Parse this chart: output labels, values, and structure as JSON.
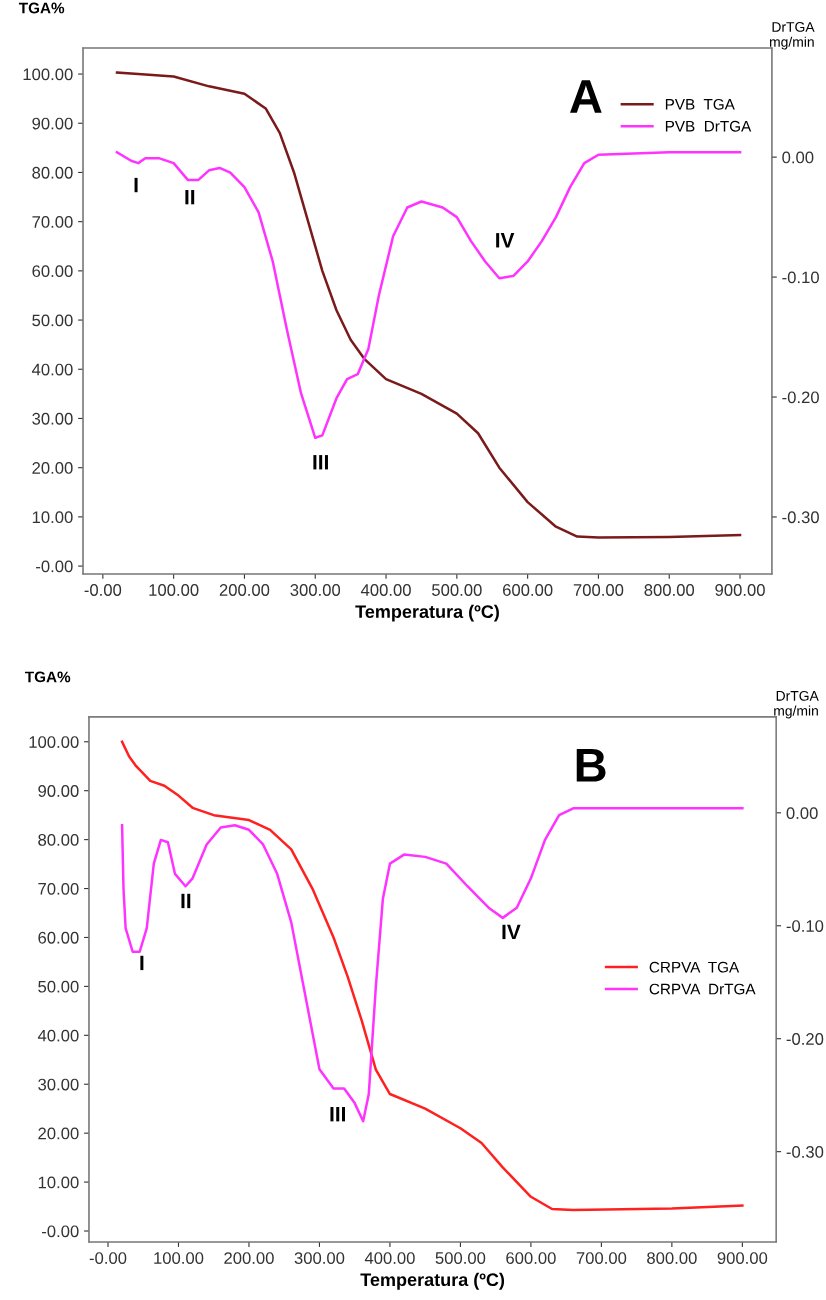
{
  "chart_data": [
    {
      "type": "line",
      "title": "A",
      "xlabel": "Temperatura (ºC)",
      "ylabel": "TGA%",
      "y2label": "DrTGA\nmg/min",
      "legend": "top right",
      "grid": false,
      "xlim": [
        -28,
        945
      ],
      "ylim": [
        -1.6,
        105.3
      ],
      "y2lim": [
        -0.3475,
        0.091
      ],
      "xticks": [
        {
          "value": 0,
          "label": "-0.00"
        },
        {
          "value": 100,
          "label": "100.00"
        },
        {
          "value": 200,
          "label": "200.00"
        },
        {
          "value": 300,
          "label": "300.00"
        },
        {
          "value": 400,
          "label": "400.00"
        },
        {
          "value": 500,
          "label": "500.00"
        },
        {
          "value": 600,
          "label": "600.00"
        },
        {
          "value": 700,
          "label": "700.00"
        },
        {
          "value": 800,
          "label": "800.00"
        },
        {
          "value": 900,
          "label": "900.00"
        }
      ],
      "yticks": [
        {
          "value": 0,
          "label": "-0.00"
        },
        {
          "value": 10,
          "label": "10.00"
        },
        {
          "value": 20,
          "label": "20.00"
        },
        {
          "value": 30,
          "label": "30.00"
        },
        {
          "value": 40,
          "label": "40.00"
        },
        {
          "value": 50,
          "label": "50.00"
        },
        {
          "value": 60,
          "label": "60.00"
        },
        {
          "value": 70,
          "label": "70.00"
        },
        {
          "value": 80,
          "label": "80.00"
        },
        {
          "value": 90,
          "label": "90.00"
        },
        {
          "value": 100,
          "label": "100.00"
        }
      ],
      "y2ticks": [
        {
          "value": 0,
          "label": "0.00"
        },
        {
          "value": -0.1,
          "label": "-0.10"
        },
        {
          "value": -0.2,
          "label": "-0.20"
        },
        {
          "value": -0.3,
          "label": "-0.30"
        }
      ],
      "series": [
        {
          "name": "PVB  TGA",
          "color": "#7b1a1a",
          "x": [
            20,
            50,
            100,
            150,
            200,
            230,
            250,
            270,
            290,
            310,
            330,
            350,
            370,
            400,
            450,
            500,
            530,
            560,
            600,
            640,
            670,
            700,
            800,
            900
          ],
          "values": [
            100.3,
            100,
            99.5,
            97.5,
            96,
            93,
            88,
            80,
            70,
            60,
            52,
            46,
            42,
            38,
            35,
            31,
            27,
            20,
            13,
            8,
            6,
            5.8,
            5.9,
            6.3
          ]
        },
        {
          "name": "PVB  DrTGA",
          "color": "#ff33ff",
          "axis": "y2",
          "x": [
            20,
            40,
            50,
            60,
            80,
            100,
            120,
            135,
            150,
            165,
            180,
            200,
            220,
            240,
            260,
            280,
            300,
            310,
            330,
            345,
            360,
            375,
            390,
            410,
            430,
            450,
            480,
            500,
            520,
            540,
            560,
            580,
            600,
            620,
            640,
            660,
            680,
            700,
            800,
            900
          ],
          "values": [
            0.004,
            -0.003,
            -0.005,
            -0.001,
            -0.001,
            -0.005,
            -0.019,
            -0.019,
            -0.011,
            -0.009,
            -0.013,
            -0.025,
            -0.046,
            -0.087,
            -0.144,
            -0.197,
            -0.234,
            -0.232,
            -0.201,
            -0.185,
            -0.181,
            -0.16,
            -0.115,
            -0.066,
            -0.042,
            -0.037,
            -0.042,
            -0.05,
            -0.07,
            -0.087,
            -0.101,
            -0.099,
            -0.087,
            -0.07,
            -0.05,
            -0.025,
            -0.005,
            0.002,
            0.004,
            0.004
          ]
        }
      ],
      "annotations": [
        "I",
        "II",
        "III",
        "IV"
      ]
    },
    {
      "type": "line",
      "title": "B",
      "xlabel": "Temperatura (ºC)",
      "ylabel": "TGA%",
      "y2label": "DrTGA\nmg/min",
      "legend": "right",
      "grid": false,
      "xlim": [
        -27,
        948
      ],
      "ylim": [
        -2.25,
        105.1
      ],
      "y2lim": [
        -0.38,
        0.085
      ],
      "xticks": [
        {
          "value": 0,
          "label": "-0.00"
        },
        {
          "value": 100,
          "label": "100.00"
        },
        {
          "value": 200,
          "label": "200.00"
        },
        {
          "value": 300,
          "label": "300.00"
        },
        {
          "value": 400,
          "label": "400.00"
        },
        {
          "value": 500,
          "label": "500.00"
        },
        {
          "value": 600,
          "label": "600.00"
        },
        {
          "value": 700,
          "label": "700.00"
        },
        {
          "value": 800,
          "label": "800.00"
        },
        {
          "value": 900,
          "label": "900.00"
        }
      ],
      "yticks": [
        {
          "value": 0,
          "label": "-0.00"
        },
        {
          "value": 10,
          "label": "10.00"
        },
        {
          "value": 20,
          "label": "20.00"
        },
        {
          "value": 30,
          "label": "30.00"
        },
        {
          "value": 40,
          "label": "40.00"
        },
        {
          "value": 50,
          "label": "50.00"
        },
        {
          "value": 60,
          "label": "60.00"
        },
        {
          "value": 70,
          "label": "70.00"
        },
        {
          "value": 80,
          "label": "80.00"
        },
        {
          "value": 90,
          "label": "90.00"
        },
        {
          "value": 100,
          "label": "100.00"
        }
      ],
      "y2ticks": [
        {
          "value": 0,
          "label": "0.00"
        },
        {
          "value": -0.1,
          "label": "-0.10"
        },
        {
          "value": -0.2,
          "label": "-0.20"
        },
        {
          "value": -0.3,
          "label": "-0.30"
        }
      ],
      "series": [
        {
          "name": "CRPVA  TGA",
          "color": "#ff2020",
          "x": [
            20,
            30,
            40,
            60,
            80,
            100,
            120,
            150,
            200,
            230,
            260,
            290,
            320,
            340,
            360,
            380,
            400,
            450,
            500,
            530,
            560,
            600,
            630,
            660,
            800,
            900
          ],
          "values": [
            100,
            97,
            95,
            92,
            91,
            89,
            86.5,
            85,
            84,
            82,
            78,
            70,
            60,
            52,
            43,
            33,
            28,
            25,
            21,
            18,
            13,
            7,
            4.5,
            4.3,
            4.6,
            5.2
          ]
        },
        {
          "name": "CRPVA  DrTGA",
          "color": "#ff33ff",
          "axis": "y2",
          "x": [
            20,
            22,
            25,
            35,
            45,
            55,
            65,
            75,
            85,
            95,
            110,
            120,
            140,
            160,
            180,
            200,
            220,
            240,
            260,
            280,
            300,
            320,
            335,
            350,
            362,
            370,
            380,
            390,
            400,
            420,
            450,
            480,
            510,
            540,
            560,
            580,
            600,
            620,
            640,
            660,
            900
          ],
          "values": [
            -0.011,
            -0.067,
            -0.102,
            -0.123,
            -0.123,
            -0.102,
            -0.045,
            -0.024,
            -0.026,
            -0.054,
            -0.065,
            -0.058,
            -0.028,
            -0.013,
            -0.011,
            -0.015,
            -0.028,
            -0.054,
            -0.097,
            -0.162,
            -0.227,
            -0.244,
            -0.244,
            -0.257,
            -0.273,
            -0.249,
            -0.154,
            -0.076,
            -0.045,
            -0.037,
            -0.039,
            -0.045,
            -0.065,
            -0.084,
            -0.093,
            -0.084,
            -0.058,
            -0.024,
            -0.002,
            0.004,
            0.004
          ]
        }
      ],
      "annotations": [
        "I",
        "II",
        "III",
        "IV"
      ]
    }
  ]
}
